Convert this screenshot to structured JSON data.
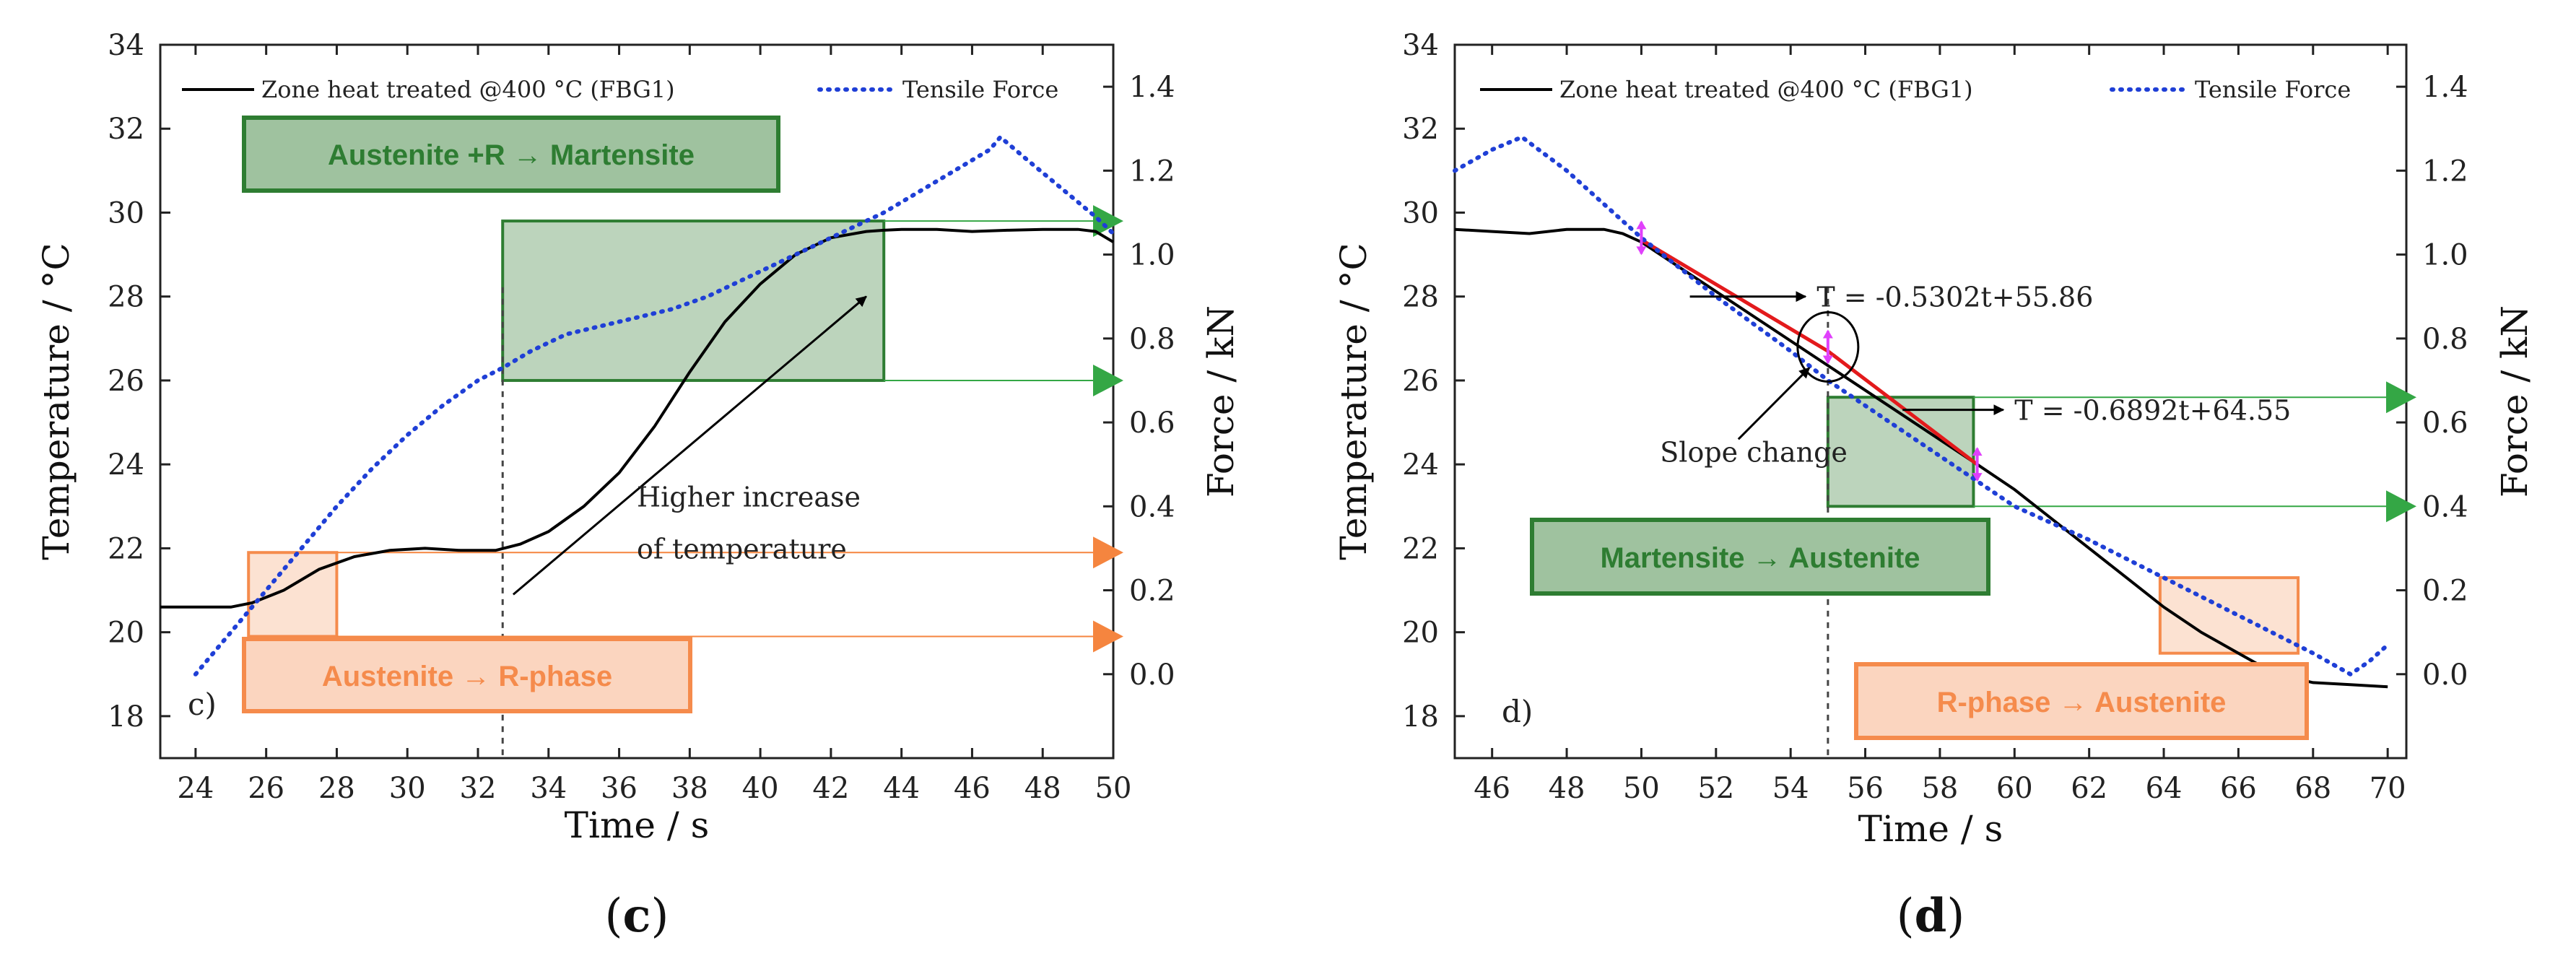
{
  "colors": {
    "axis": "#222222",
    "temperature": "#000000",
    "force": "#1f3fd6",
    "fit": "#e31a1c",
    "green_fill": "#9fc29f",
    "green_border": "#2e7d32",
    "green_text": "#2e7d32",
    "orange_fill": "#fbd5bf",
    "orange_border": "#f58b4c",
    "orange_text": "#f58b4c",
    "green_arrow": "#34a745",
    "orange_arrow": "#f5853f",
    "marker": "#e040fb"
  },
  "chart_data": [
    {
      "id": "c",
      "type": "line",
      "caption_open": "(",
      "caption_letter": "c",
      "caption_close": ")",
      "panel_label": "c)",
      "xlabel": "Time / s",
      "ylabel_left": "Temperature / °C",
      "ylabel_right": "Force / kN",
      "xlim": [
        23,
        50
      ],
      "ylim_left": [
        17,
        34
      ],
      "ylim_right": [
        -0.2,
        1.5
      ],
      "xticks": [
        24,
        26,
        28,
        30,
        32,
        34,
        36,
        38,
        40,
        42,
        44,
        46,
        48,
        50
      ],
      "yticks_left": [
        18,
        20,
        22,
        24,
        26,
        28,
        30,
        32,
        34
      ],
      "yticks_right": [
        "0.0",
        "0.2",
        "0.4",
        "0.6",
        "0.8",
        "1.0",
        "1.2",
        "1.4"
      ],
      "legend": [
        "Zone heat treated  @400 °C (FBG1)",
        "Tensile Force"
      ],
      "series": [
        {
          "name": "Zone heat treated @400 °C (FBG1)",
          "axis": "left",
          "style": "solid",
          "x": [
            23,
            25,
            25.6,
            26.5,
            27.5,
            28.5,
            29.5,
            30.5,
            31.5,
            32.5,
            33.2,
            34,
            35,
            36,
            37,
            38,
            39,
            40,
            41,
            42,
            43,
            43.5,
            44,
            45,
            46,
            47,
            48,
            49,
            49.5,
            50
          ],
          "y": [
            20.6,
            20.6,
            20.7,
            21.0,
            21.5,
            21.8,
            21.95,
            22.0,
            21.95,
            21.95,
            22.1,
            22.4,
            23.0,
            23.8,
            24.9,
            26.2,
            27.4,
            28.3,
            29.0,
            29.4,
            29.55,
            29.58,
            29.6,
            29.6,
            29.55,
            29.58,
            29.6,
            29.6,
            29.55,
            29.3
          ]
        },
        {
          "name": "Tensile Force",
          "axis": "right",
          "style": "dotted",
          "x": [
            24,
            24.5,
            25,
            26,
            27,
            28,
            29,
            30,
            31,
            32,
            32.7,
            33.5,
            34.5,
            35.5,
            36.5,
            37.5,
            38.5,
            39.5,
            40.5,
            41.5,
            42.5,
            43.5,
            44.5,
            45.5,
            46.5,
            46.8,
            47.5,
            48.5,
            49.5,
            50
          ],
          "y": [
            0.0,
            0.05,
            0.1,
            0.2,
            0.3,
            0.4,
            0.49,
            0.57,
            0.64,
            0.7,
            0.73,
            0.77,
            0.81,
            0.83,
            0.85,
            0.87,
            0.9,
            0.94,
            0.98,
            1.02,
            1.06,
            1.1,
            1.15,
            1.2,
            1.25,
            1.28,
            1.23,
            1.16,
            1.09,
            1.05
          ]
        }
      ],
      "annotations": {
        "green_label": "Austenite +R → Martensite",
        "orange_label": "Austenite → R-phase",
        "note_line1": "Higher increase",
        "note_line2": "of temperature",
        "dashed_x": 32.7,
        "green_region": {
          "x": [
            32.7,
            43.5
          ],
          "y": [
            26.0,
            29.8
          ]
        },
        "orange_region": {
          "x": [
            25.5,
            28.0
          ],
          "y": [
            19.9,
            21.9
          ]
        },
        "note_arrow": {
          "from": [
            33.0,
            20.9
          ],
          "to": [
            43.0,
            28.0
          ]
        },
        "note_pos": [
          36.5,
          23.0
        ],
        "arrows": [
          {
            "color": "green",
            "from": [
              43.5,
              29.8
            ],
            "to": [
              50,
              29.8
            ]
          },
          {
            "color": "green",
            "from": [
              43.5,
              26.0
            ],
            "to": [
              50,
              26.0
            ]
          },
          {
            "color": "orange",
            "from": [
              28.0,
              21.9
            ],
            "to": [
              50,
              21.9
            ]
          },
          {
            "color": "orange",
            "from": [
              28.0,
              19.9
            ],
            "to": [
              50,
              19.9
            ]
          }
        ]
      }
    },
    {
      "id": "d",
      "type": "line",
      "caption_open": "(",
      "caption_letter": "d",
      "caption_close": ")",
      "panel_label": "d)",
      "xlabel": "Time / s",
      "ylabel_left": "Temperature / °C",
      "ylabel_right": "Force / kN",
      "xlim": [
        45,
        70.5
      ],
      "ylim_left": [
        17,
        34
      ],
      "ylim_right": [
        -0.2,
        1.5
      ],
      "xticks": [
        46,
        48,
        50,
        52,
        54,
        56,
        58,
        60,
        62,
        64,
        66,
        68,
        70
      ],
      "yticks_left": [
        18,
        20,
        22,
        24,
        26,
        28,
        30,
        32,
        34
      ],
      "yticks_right": [
        "0.0",
        "0.2",
        "0.4",
        "0.6",
        "0.8",
        "1.0",
        "1.2",
        "1.4"
      ],
      "legend": [
        "Zone heat treated  @400 °C (FBG1)",
        "Tensile Force"
      ],
      "series": [
        {
          "name": "Zone heat treated @400 °C (FBG1)",
          "axis": "left",
          "style": "solid",
          "x": [
            45,
            46,
            47,
            48,
            49,
            49.5,
            50,
            59,
            60,
            61,
            62,
            63,
            64,
            65,
            66,
            67,
            67.5,
            68,
            69,
            70
          ],
          "y": [
            29.6,
            29.55,
            29.5,
            29.6,
            29.6,
            29.5,
            29.3,
            24.0,
            23.4,
            22.7,
            22.0,
            21.3,
            20.6,
            20.0,
            19.5,
            19.0,
            18.9,
            18.8,
            18.75,
            18.7
          ]
        },
        {
          "name": "Fit segments",
          "axis": "left",
          "style": "fit",
          "x": [
            50,
            55,
            59
          ],
          "y": [
            29.35,
            26.7,
            24.0
          ]
        },
        {
          "name": "Tensile Force",
          "axis": "right",
          "style": "dotted",
          "x": [
            45,
            46,
            46.8,
            48,
            50,
            52,
            54,
            55,
            56,
            58,
            60,
            62,
            64,
            66,
            68,
            69,
            69.5,
            70
          ],
          "y": [
            1.2,
            1.25,
            1.28,
            1.2,
            1.04,
            0.9,
            0.77,
            0.7,
            0.64,
            0.52,
            0.4,
            0.32,
            0.23,
            0.14,
            0.05,
            0.0,
            0.03,
            0.07
          ]
        }
      ],
      "annotations": {
        "green_label": "Martensite → Austenite",
        "orange_label": "R-phase → Austenite",
        "slope_label": "Slope change",
        "fit1": "T = -0.5302t+55.86",
        "fit2": "T = -0.6892t+64.55",
        "dashed_x": 55.0,
        "green_region": {
          "x": [
            55,
            58.9
          ],
          "y": [
            23.0,
            25.6
          ]
        },
        "orange_region": {
          "x": [
            63.9,
            67.6
          ],
          "y": [
            19.5,
            21.3
          ]
        },
        "circle_center": [
          55.0,
          26.8
        ],
        "markers": [
          [
            50.0,
            29.4
          ],
          [
            55.0,
            26.8
          ],
          [
            59.0,
            24.0
          ]
        ],
        "fit1_arrow": {
          "from": [
            51.3,
            28.0
          ],
          "to": [
            54.4,
            28.0
          ]
        },
        "fit2_arrow": {
          "from": [
            57.0,
            25.3
          ],
          "to": [
            59.7,
            25.3
          ]
        },
        "slope_arrow": {
          "from": [
            52.6,
            24.6
          ],
          "to": [
            54.5,
            26.3
          ]
        },
        "slope_pos": [
          50.5,
          24.3
        ],
        "fit1_pos": [
          54.7,
          28.0
        ],
        "fit2_pos": [
          60.0,
          25.3
        ],
        "arrows": [
          {
            "color": "green",
            "from": [
              58.9,
              25.6
            ],
            "to": [
              70.5,
              25.6
            ]
          },
          {
            "color": "green",
            "from": [
              58.9,
              23.0
            ],
            "to": [
              70.5,
              23.0
            ]
          }
        ]
      }
    }
  ]
}
